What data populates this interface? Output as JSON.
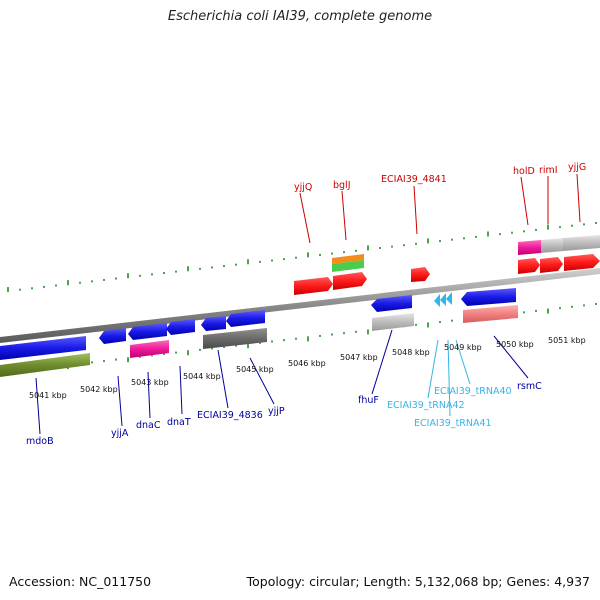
{
  "title": "Escherichia coli IAI39, complete genome",
  "footer": {
    "accession": "Accession: NC_011750",
    "topology": "Topology: circular;",
    "length": "Length: 5,132,068 bp;",
    "genes": "Genes: 4,937"
  },
  "axis_labels": [
    "5041 kbp",
    "5042 kbp",
    "5043 kbp",
    "5044 kbp",
    "5045 kbp",
    "5046 kbp",
    "5047 kbp",
    "5048 kbp",
    "5049 kbp",
    "5050 kbp",
    "5051 kbp"
  ],
  "upper_gene_labels": [
    {
      "text": "yjjQ",
      "color": "#cc0000"
    },
    {
      "text": "bglJ",
      "color": "#cc0000"
    },
    {
      "text": "ECIAI39_4841",
      "color": "#cc0000"
    },
    {
      "text": "holD",
      "color": "#cc0000"
    },
    {
      "text": "rimI",
      "color": "#cc0000"
    },
    {
      "text": "yjjG",
      "color": "#cc0000"
    }
  ],
  "lower_gene_labels": [
    {
      "text": "mdoB",
      "color": "#000099"
    },
    {
      "text": "yjjA",
      "color": "#000099"
    },
    {
      "text": "dnaC",
      "color": "#000099"
    },
    {
      "text": "dnaT",
      "color": "#000099"
    },
    {
      "text": "ECIAI39_4836",
      "color": "#000099"
    },
    {
      "text": "yjjP",
      "color": "#000099"
    },
    {
      "text": "fhuF",
      "color": "#000099"
    },
    {
      "text": "ECIAI39_tRNA42",
      "color": "#33b5e5"
    },
    {
      "text": "ECIAI39_tRNA41",
      "color": "#33b5e5"
    },
    {
      "text": "ECIAI39_tRNA40",
      "color": "#33b5e5"
    },
    {
      "text": "rsmC",
      "color": "#000099"
    }
  ],
  "colors": {
    "forward_gene": "#ff1a1a",
    "reverse_gene": "#1a1ae6",
    "trna": "#33b5e5",
    "axis_tick": "#1e8c1e",
    "backbone": "#8a8a8a"
  }
}
